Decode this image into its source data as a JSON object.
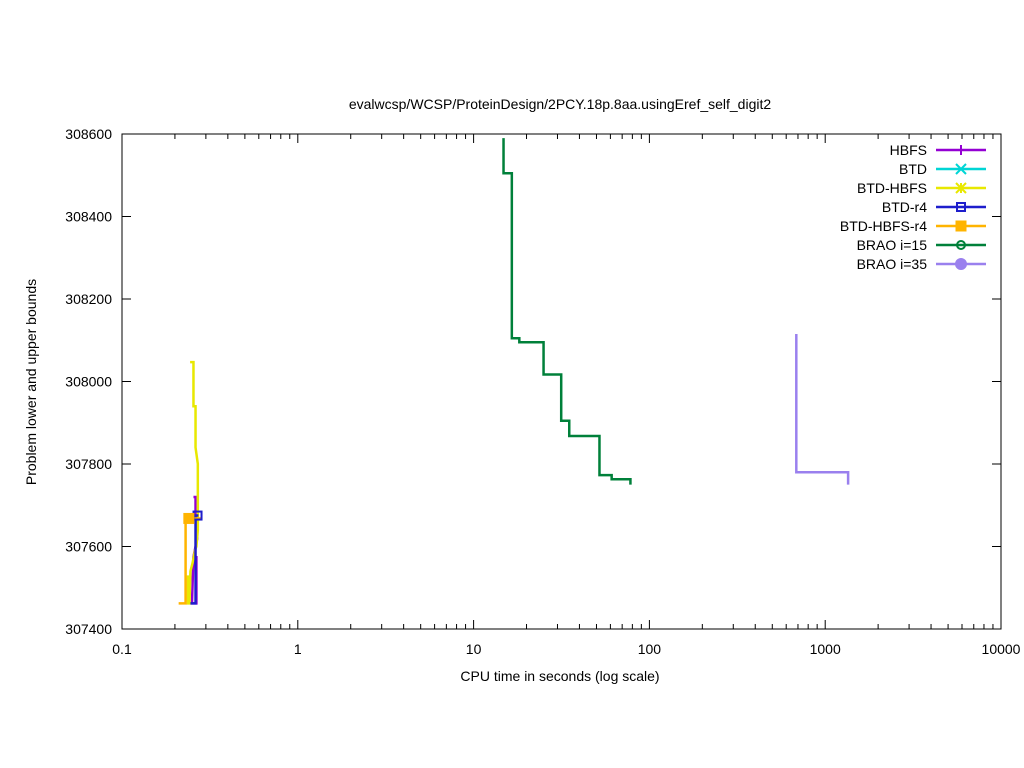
{
  "chart_data": {
    "type": "line",
    "title": "evalwcsp/WCSP/ProteinDesign/2PCY.18p.8aa.usingEref_self_digit2",
    "xlabel": "CPU time in seconds (log scale)",
    "ylabel": "Problem lower and upper bounds",
    "xscale": "log",
    "xlim": [
      0.1,
      10000
    ],
    "ylim": [
      307400,
      308600
    ],
    "x_ticks": [
      0.1,
      1,
      10,
      100,
      1000,
      10000
    ],
    "x_tick_labels": [
      "0.1",
      "1",
      "10",
      "100",
      "1000",
      "10000"
    ],
    "y_ticks": [
      307400,
      307600,
      307800,
      308000,
      308200,
      308400,
      308600
    ],
    "y_tick_labels": [
      "307400",
      "307600",
      "307800",
      "308000",
      "308200",
      "308400",
      "308600"
    ],
    "grid": false,
    "legend_position": "top-right",
    "series": [
      {
        "name": "HBFS",
        "color": "#9400d3",
        "marker": "plus",
        "points": [
          [
            0.255,
            307720
          ],
          [
            0.262,
            307720
          ],
          [
            0.262,
            307672
          ],
          [
            0.268,
            307672
          ],
          [
            0.268,
            307620
          ],
          [
            0.255,
            307575
          ],
          [
            0.25,
            307462
          ],
          [
            0.265,
            307462
          ],
          [
            0.265,
            307577
          ]
        ]
      },
      {
        "name": "BTD",
        "color": "#00d5d5",
        "marker": "x",
        "points": [
          [
            0.235,
            307510
          ],
          [
            0.24,
            307510
          ],
          [
            0.24,
            307470
          ]
        ]
      },
      {
        "name": "BTD-HBFS",
        "color": "#e8e800",
        "marker": "star",
        "points": [
          [
            0.244,
            308047
          ],
          [
            0.255,
            308047
          ],
          [
            0.255,
            307940
          ],
          [
            0.262,
            307940
          ],
          [
            0.262,
            307840
          ],
          [
            0.27,
            307800
          ],
          [
            0.27,
            307640
          ],
          [
            0.265,
            307600
          ],
          [
            0.26,
            307590
          ],
          [
            0.252,
            307560
          ],
          [
            0.245,
            307540
          ],
          [
            0.242,
            307462
          ],
          [
            0.237,
            307462
          ],
          [
            0.237,
            307530
          ]
        ]
      },
      {
        "name": "BTD-r4",
        "color": "#1e1ecc",
        "marker": "square-open",
        "points": [
          [
            0.245,
            307462
          ],
          [
            0.262,
            307462
          ],
          [
            0.262,
            307675
          ],
          [
            0.272,
            307675
          ]
        ]
      },
      {
        "name": "BTD-HBFS-r4",
        "color": "#ffb400",
        "marker": "square-filled",
        "points": [
          [
            0.21,
            307462
          ],
          [
            0.23,
            307462
          ],
          [
            0.23,
            307668
          ],
          [
            0.283,
            307668
          ]
        ]
      },
      {
        "name": "BRAO i=15",
        "color": "#00803a",
        "marker": "circle-open",
        "points": [
          [
            14.8,
            308590
          ],
          [
            14.8,
            308505
          ],
          [
            16.5,
            308505
          ],
          [
            16.5,
            308105
          ],
          [
            18.2,
            308105
          ],
          [
            18.2,
            308095
          ],
          [
            25,
            308095
          ],
          [
            25,
            308017
          ],
          [
            31.5,
            308017
          ],
          [
            31.5,
            307905
          ],
          [
            35,
            307905
          ],
          [
            35,
            307868
          ],
          [
            52,
            307868
          ],
          [
            52,
            307773
          ],
          [
            61,
            307773
          ],
          [
            61,
            307763
          ],
          [
            78,
            307763
          ],
          [
            78,
            307750
          ]
        ]
      },
      {
        "name": "BRAO i=35",
        "color": "#9a80ee",
        "marker": "circle-filled",
        "points": [
          [
            685,
            308115
          ],
          [
            685,
            307780
          ],
          [
            1350,
            307780
          ],
          [
            1350,
            307750
          ]
        ]
      }
    ]
  }
}
